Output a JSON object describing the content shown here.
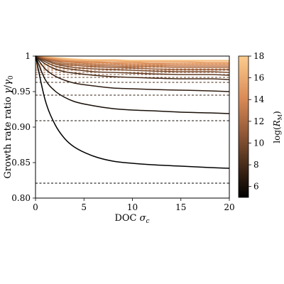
{
  "chart_data": {
    "type": "line",
    "xlabel": "DOC σ_c",
    "ylabel": "Growth rate ratio γ/γ₀",
    "xlim": [
      0,
      20
    ],
    "ylim": [
      0.8,
      1.0
    ],
    "x_ticks": [
      "0",
      "5",
      "10",
      "15",
      "20"
    ],
    "y_ticks": [
      "0.80",
      "0.85",
      "0.90",
      "0.95",
      "1"
    ],
    "x_tick_values": [
      0,
      5,
      10,
      15,
      20
    ],
    "y_tick_values": [
      0.8,
      0.85,
      0.9,
      0.95,
      1.0
    ],
    "grid": false,
    "colorbar": {
      "label": "log(R_M)",
      "range": [
        5,
        18
      ],
      "ticks": [
        "6",
        "8",
        "10",
        "12",
        "14",
        "16",
        "18"
      ],
      "tick_values": [
        6,
        8,
        10,
        12,
        14,
        16,
        18
      ],
      "colormap": "copper"
    },
    "series": [
      {
        "log_rm": 5,
        "asymptote": 0.821,
        "x": [
          0,
          1,
          2,
          3,
          4,
          6,
          8,
          10,
          12,
          15,
          18,
          20
        ],
        "values": [
          1.0,
          0.938,
          0.904,
          0.884,
          0.872,
          0.859,
          0.852,
          0.849,
          0.847,
          0.845,
          0.843,
          0.842
        ]
      },
      {
        "log_rm": 6,
        "asymptote": 0.909,
        "x": [
          0,
          1,
          2,
          3,
          4,
          6,
          8,
          10,
          12,
          15,
          18,
          20
        ],
        "values": [
          1.0,
          0.967,
          0.951,
          0.942,
          0.936,
          0.93,
          0.926,
          0.924,
          0.923,
          0.921,
          0.92,
          0.919
        ]
      },
      {
        "log_rm": 7,
        "asymptote": 0.945,
        "x": [
          0,
          1,
          2,
          3,
          4,
          6,
          8,
          10,
          12,
          15,
          18,
          20
        ],
        "values": [
          1.0,
          0.982,
          0.972,
          0.966,
          0.962,
          0.958,
          0.955,
          0.954,
          0.953,
          0.952,
          0.951,
          0.95
        ]
      },
      {
        "log_rm": 8,
        "asymptote": 0.963,
        "x": [
          0,
          1,
          2,
          3,
          4,
          6,
          8,
          10,
          12,
          15,
          18,
          20
        ],
        "values": [
          1.0,
          0.989,
          0.982,
          0.978,
          0.976,
          0.973,
          0.971,
          0.97,
          0.969,
          0.968,
          0.968,
          0.967
        ]
      },
      {
        "log_rm": 9,
        "asymptote": 0.97,
        "x": [
          0,
          1,
          2,
          3,
          4,
          6,
          8,
          10,
          12,
          15,
          18,
          20
        ],
        "values": [
          1.0,
          0.992,
          0.986,
          0.983,
          0.981,
          0.978,
          0.977,
          0.976,
          0.975,
          0.974,
          0.974,
          0.973
        ]
      },
      {
        "log_rm": 10,
        "asymptote": 0.974,
        "x": [
          0,
          1,
          2,
          3,
          4,
          6,
          8,
          10,
          12,
          15,
          18,
          20
        ],
        "values": [
          1.0,
          0.994,
          0.989,
          0.986,
          0.984,
          0.982,
          0.981,
          0.98,
          0.979,
          0.978,
          0.978,
          0.977
        ]
      },
      {
        "log_rm": 11,
        "asymptote": 0.977,
        "x": [
          0,
          1,
          2,
          3,
          4,
          6,
          8,
          10,
          12,
          15,
          18,
          20
        ],
        "values": [
          1.0,
          0.995,
          0.991,
          0.988,
          0.987,
          0.985,
          0.984,
          0.983,
          0.982,
          0.981,
          0.981,
          0.981
        ]
      },
      {
        "log_rm": 12,
        "asymptote": 0.98,
        "x": [
          0,
          1,
          2,
          3,
          4,
          6,
          8,
          10,
          12,
          15,
          18,
          20
        ],
        "values": [
          1.0,
          0.996,
          0.993,
          0.99,
          0.989,
          0.987,
          0.986,
          0.985,
          0.985,
          0.984,
          0.984,
          0.984
        ]
      },
      {
        "log_rm": 13,
        "asymptote": 0.982,
        "x": [
          0,
          1,
          2,
          3,
          4,
          6,
          8,
          10,
          12,
          15,
          18,
          20
        ],
        "values": [
          1.0,
          0.997,
          0.994,
          0.992,
          0.991,
          0.989,
          0.988,
          0.987,
          0.987,
          0.986,
          0.986,
          0.986
        ]
      },
      {
        "log_rm": 14,
        "asymptote": 0.984,
        "x": [
          0,
          1,
          2,
          3,
          4,
          6,
          8,
          10,
          12,
          15,
          18,
          20
        ],
        "values": [
          1.0,
          0.997,
          0.995,
          0.993,
          0.992,
          0.991,
          0.99,
          0.989,
          0.989,
          0.988,
          0.988,
          0.988
        ]
      },
      {
        "log_rm": 15,
        "asymptote": 0.986,
        "x": [
          0,
          1,
          2,
          3,
          4,
          6,
          8,
          10,
          12,
          15,
          18,
          20
        ],
        "values": [
          1.0,
          0.998,
          0.996,
          0.994,
          0.993,
          0.992,
          0.991,
          0.991,
          0.99,
          0.99,
          0.99,
          0.99
        ]
      },
      {
        "log_rm": 16,
        "asymptote": 0.988,
        "x": [
          0,
          1,
          2,
          3,
          4,
          6,
          8,
          10,
          12,
          15,
          18,
          20
        ],
        "values": [
          1.0,
          0.998,
          0.997,
          0.995,
          0.994,
          0.993,
          0.993,
          0.992,
          0.992,
          0.992,
          0.991,
          0.991
        ]
      },
      {
        "log_rm": 17,
        "asymptote": 0.989,
        "x": [
          0,
          1,
          2,
          3,
          4,
          6,
          8,
          10,
          12,
          15,
          18,
          20
        ],
        "values": [
          1.0,
          0.998,
          0.997,
          0.996,
          0.995,
          0.994,
          0.994,
          0.993,
          0.993,
          0.993,
          0.993,
          0.993
        ]
      },
      {
        "log_rm": 18,
        "asymptote": 0.99,
        "x": [
          0,
          1,
          2,
          3,
          4,
          6,
          8,
          10,
          12,
          15,
          18,
          20
        ],
        "values": [
          1.0,
          0.999,
          0.998,
          0.997,
          0.996,
          0.995,
          0.995,
          0.994,
          0.994,
          0.994,
          0.994,
          0.994
        ]
      }
    ]
  }
}
